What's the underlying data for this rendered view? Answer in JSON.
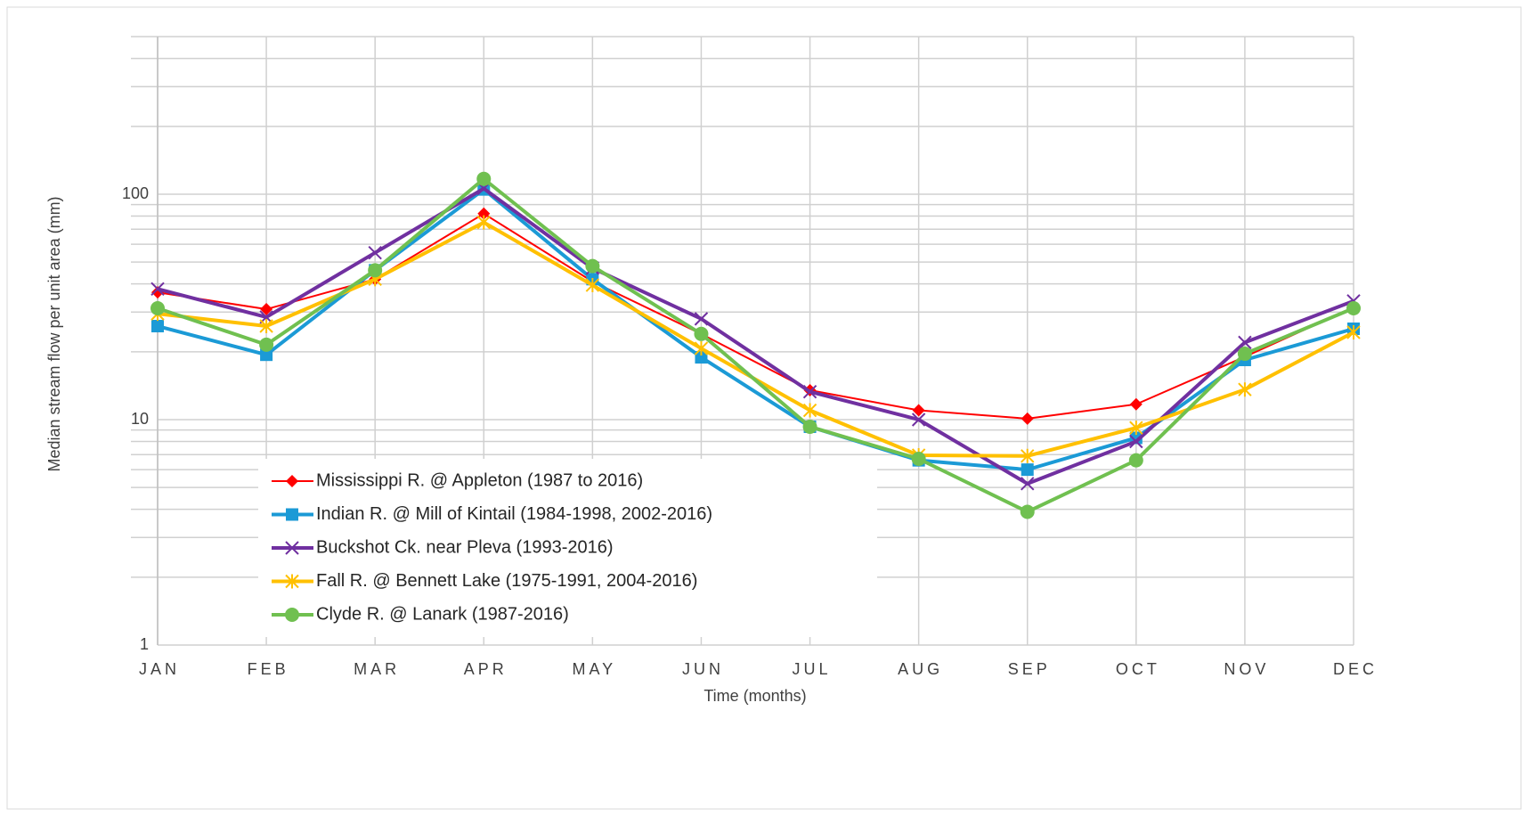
{
  "chart_data": {
    "type": "line",
    "x_label": "Time (months)",
    "y_label": "Median  stream  flow  per unit area (mm)",
    "categories": [
      "JAN",
      "FEB",
      "MAR",
      "APR",
      "MAY",
      "JUN",
      "JUL",
      "AUG",
      "SEP",
      "OCT",
      "NOV",
      "DEC"
    ],
    "y_scale": "log",
    "ylim": [
      1,
      500
    ],
    "yticks": [
      1,
      10,
      100
    ],
    "minor_yticks": [
      2,
      3,
      4,
      5,
      6,
      7,
      8,
      9,
      20,
      30,
      40,
      50,
      60,
      70,
      80,
      90,
      200,
      300,
      400,
      500
    ],
    "grid": true,
    "legend": "lower left",
    "series": [
      {
        "name": "Mississippi R. @ Appleton (1987 to 2016)",
        "color": "#ff0000",
        "marker": "diamond",
        "values": [
          36.7,
          30.9,
          42,
          82,
          41,
          24,
          13.5,
          11,
          10.1,
          11.7,
          19,
          31.5
        ]
      },
      {
        "name": "Indian R. @ Mill of Kintail (1984-1998, 2002-2016)",
        "color": "#1b9ad6",
        "marker": "square",
        "values": [
          26,
          19.4,
          46,
          105,
          42,
          18.9,
          9.3,
          6.6,
          6.0,
          8.3,
          18.4,
          25.3
        ]
      },
      {
        "name": "Buckshot Ck. near Pleva (1993-2016)",
        "color": "#7030a0",
        "marker": "x",
        "values": [
          38,
          28.5,
          55,
          106,
          47,
          28,
          13.3,
          10,
          5.2,
          8,
          22,
          33.6
        ]
      },
      {
        "name": "Fall R. @ Bennett Lake (1975-1991, 2004-2016)",
        "color": "#ffc000",
        "marker": "star",
        "values": [
          29.5,
          26,
          42,
          75,
          39.5,
          20.7,
          11,
          6.95,
          6.9,
          9.2,
          13.6,
          24.4
        ]
      },
      {
        "name": "Clyde R. @ Lanark (1987-2016)",
        "color": "#70c050",
        "marker": "circle",
        "values": [
          31.2,
          21.5,
          46,
          117,
          48,
          24,
          9.3,
          6.7,
          3.9,
          6.6,
          19.6,
          31.2
        ]
      }
    ]
  }
}
